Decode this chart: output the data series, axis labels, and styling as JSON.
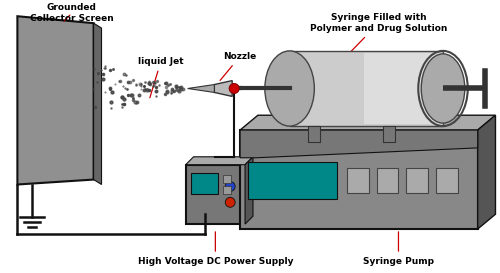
{
  "background_color": "#ffffff",
  "labels": {
    "grounded_collector": "Grounded\nCollector Screen",
    "liquid_jet": "liquid Jet",
    "nozzle": "Nozzle",
    "syringe_label": "Syringe Filled with\nPolymer and Drug Solution",
    "power_supply": "High Voltage DC Power Supply",
    "syringe_pump": "Syringe Pump"
  },
  "colors": {
    "black": "#000000",
    "white": "#ffffff",
    "red": "#cc0000",
    "screen_gray": "#999999",
    "screen_dark": "#666666",
    "body_gray": "#888888",
    "top_gray": "#aaaaaa",
    "right_gray": "#666666",
    "teal": "#008888",
    "btn_gray": "#999999",
    "syringe_body": "#cccccc",
    "syringe_dark": "#555555",
    "nozzle_silver": "#bbbbbb",
    "wire_color": "#111111",
    "dot_color": "#333333"
  }
}
